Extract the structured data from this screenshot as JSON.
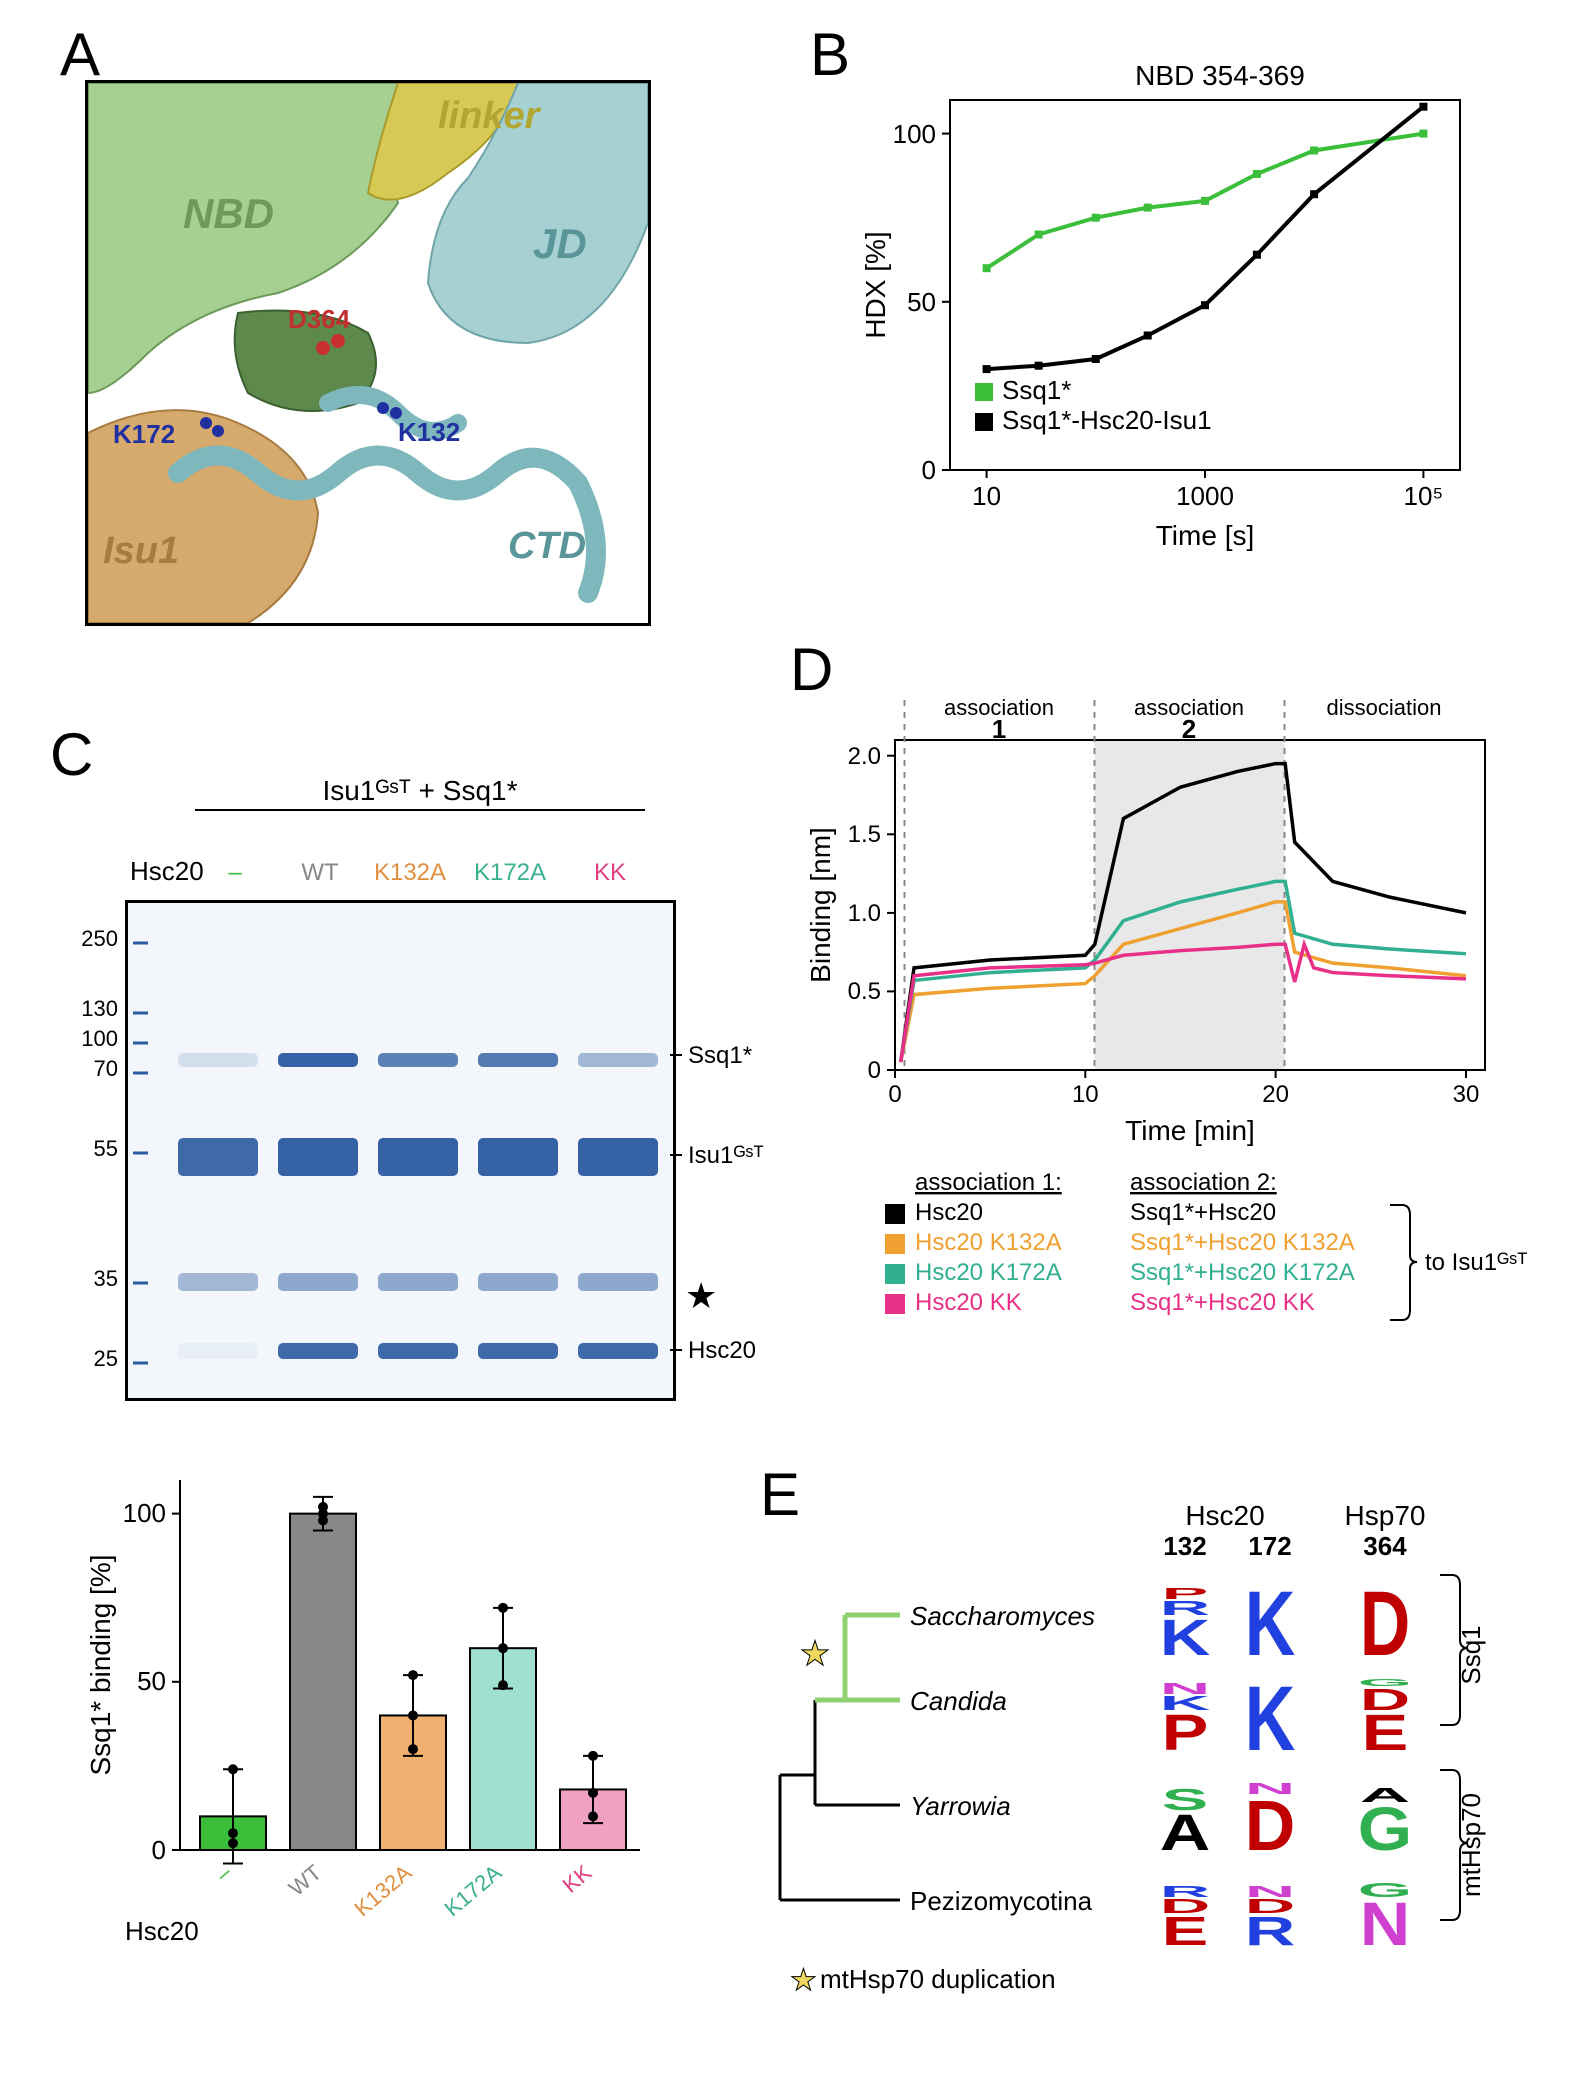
{
  "panelA": {
    "label": "A",
    "domains": {
      "NBD": {
        "text": "NBD",
        "color": "#8db87a"
      },
      "linker": {
        "text": "linker",
        "color": "#c6b83e"
      },
      "JD": {
        "text": "JD",
        "color": "#8fbfc3"
      },
      "CTD": {
        "text": "CTD",
        "color": "#7fb8bc"
      },
      "Isu1": {
        "text": "Isu1",
        "color": "#c89659"
      }
    },
    "residues": {
      "D364": {
        "text": "D364",
        "color": "#c03030"
      },
      "K132": {
        "text": "K132",
        "color": "#2030a0"
      },
      "K172": {
        "text": "K172",
        "color": "#2030a0"
      }
    }
  },
  "panelB": {
    "label": "B",
    "title": "NBD 354-369",
    "xlabel": "Time [s]",
    "ylabel": "HDX [%]",
    "xscale": "log",
    "xlim": [
      5,
      200000
    ],
    "ylim": [
      0,
      110
    ],
    "yticks": [
      0,
      50,
      100
    ],
    "xticks": [
      10,
      1000,
      100000
    ],
    "xtick_labels": [
      "10",
      "1000",
      "10⁵"
    ],
    "legend_pos": "lower-left",
    "series": [
      {
        "name": "Ssq1*",
        "color": "#3bbf3b",
        "marker": "square",
        "points": [
          [
            10,
            60
          ],
          [
            30,
            70
          ],
          [
            100,
            75
          ],
          [
            300,
            78
          ],
          [
            1000,
            80
          ],
          [
            3000,
            88
          ],
          [
            10000,
            95
          ],
          [
            100000,
            100
          ]
        ]
      },
      {
        "name": "Ssq1*-Hsc20-Isu1",
        "color": "#000000",
        "marker": "square",
        "points": [
          [
            10,
            30
          ],
          [
            30,
            31
          ],
          [
            100,
            33
          ],
          [
            300,
            40
          ],
          [
            1000,
            49
          ],
          [
            3000,
            64
          ],
          [
            10000,
            82
          ],
          [
            100000,
            108
          ]
        ]
      }
    ],
    "title_fontsize": 28,
    "axis_fontsize": 28,
    "tick_fontsize": 26,
    "line_width": 4,
    "marker_size": 8
  },
  "panelC": {
    "label": "C",
    "header": "Isu1ᴳˢᵀ + Ssq1*",
    "hsc20_row_label": "Hsc20",
    "mw_markers": [
      "250",
      "130",
      "100",
      "70",
      "55",
      "35",
      "25"
    ],
    "mw_positions": [
      40,
      110,
      140,
      170,
      250,
      380,
      460
    ],
    "lane_labels": [
      {
        "text": "–",
        "color": "#3bbf3b"
      },
      {
        "text": "WT",
        "color": "#888888"
      },
      {
        "text": "K132A",
        "color": "#e09040"
      },
      {
        "text": "K172A",
        "color": "#3bb090"
      },
      {
        "text": "KK",
        "color": "#e04080"
      }
    ],
    "band_labels": {
      "Ssq1*": {
        "text": "Ssq1*",
        "y": 155
      },
      "Isu1GST": {
        "text": "Isu1ᴳˢᵀ",
        "y": 255
      },
      "Hsc20": {
        "text": "Hsc20",
        "y": 450
      }
    },
    "star_y": 395,
    "barChart": {
      "ylabel": "Ssq1* binding [%]",
      "ylim": [
        0,
        110
      ],
      "yticks": [
        0,
        50,
        100
      ],
      "axis_fontsize": 28,
      "tick_fontsize": 26,
      "categories": [
        {
          "label": "–",
          "value": 10,
          "error": 14,
          "color": "#3bbf3b",
          "label_color": "#3bbf3b"
        },
        {
          "label": "WT",
          "value": 100,
          "error": 5,
          "color": "#888888",
          "label_color": "#888888"
        },
        {
          "label": "K132A",
          "value": 40,
          "error": 12,
          "color": "#f0b070",
          "label_color": "#e09040"
        },
        {
          "label": "K172A",
          "value": 60,
          "error": 12,
          "color": "#a0e0d0",
          "label_color": "#3bb090"
        },
        {
          "label": "KK",
          "value": 18,
          "error": 10,
          "color": "#f0a0c0",
          "label_color": "#e04080"
        }
      ],
      "xaxis_label": "Hsc20",
      "scatter_points": [
        [
          0,
          2
        ],
        [
          0,
          5
        ],
        [
          0,
          24
        ],
        [
          1,
          98
        ],
        [
          1,
          100
        ],
        [
          1,
          102
        ],
        [
          2,
          30
        ],
        [
          2,
          40
        ],
        [
          2,
          52
        ],
        [
          3,
          49
        ],
        [
          3,
          60
        ],
        [
          3,
          72
        ],
        [
          4,
          10
        ],
        [
          4,
          17
        ],
        [
          4,
          28
        ]
      ]
    }
  },
  "panelD": {
    "label": "D",
    "ylabel": "Binding [nm]",
    "xlabel": "Time [min]",
    "ylim": [
      -0.1,
      2.0
    ],
    "yticks": [
      0,
      0.5,
      1.0,
      1.5,
      2.0
    ],
    "xlim": [
      0,
      31
    ],
    "xticks": [
      0,
      10,
      20,
      30
    ],
    "axis_fontsize": 28,
    "tick_fontsize": 26,
    "phase_labels": {
      "assoc": "association",
      "dissoc": "dissociation",
      "one": "1",
      "two": "2"
    },
    "shade_x": [
      10.5,
      20.5
    ],
    "shade_color": "#e8e8e8",
    "line_width": 3.5,
    "series": [
      {
        "name": "Hsc20",
        "color": "#000000",
        "poly": "0.3,-0.05 1,0.55 5,0.6 10,0.63 10.5,0.7 12,1.5 15,1.7 18,1.8 20,1.85 20.5,1.85 21,1.35 23,1.1 26,1.0 30,0.9"
      },
      {
        "name": "Hsc20 K132A",
        "color": "#f0a030",
        "poly": "0.3,-0.05 1,0.38 5,0.42 10,0.45 10.5,0.5 12,0.7 15,0.8 18,0.9 20,0.97 20.5,0.97 21,0.65 23,0.58 26,0.55 30,0.5"
      },
      {
        "name": "Hsc20 K172A",
        "color": "#30b090",
        "poly": "0.3,-0.05 1,0.47 5,0.52 10,0.55 10.5,0.6 12,0.85 15,0.97 18,1.05 20,1.1 20.5,1.1 21,0.77 23,0.7 26,0.67 30,0.64"
      },
      {
        "name": "Hsc20 KK",
        "color": "#e83088",
        "poly": "0.3,-0.05 1,0.5 5,0.55 10,0.57 10.5,0.58 12,0.63 15,0.66 18,0.68 20,0.7 20.5,0.7 21,0.46 21.5,0.7 22,0.55 23,0.52 26,0.5 30,0.48"
      }
    ],
    "legend": {
      "col1_header": "association 1:",
      "col2_header": "association 2:",
      "bracket_label": "to Isu1ᴳˢᵀ",
      "rows": [
        {
          "color": "#000000",
          "c1": "Hsc20",
          "c2": "Ssq1*+Hsc20"
        },
        {
          "color": "#f0a030",
          "c1": "Hsc20 K132A",
          "c2": "Ssq1*+Hsc20 K132A"
        },
        {
          "color": "#30b090",
          "c1": "Hsc20 K172A",
          "c2": "Ssq1*+Hsc20 K172A"
        },
        {
          "color": "#e83088",
          "c1": "Hsc20 KK",
          "c2": "Ssq1*+Hsc20 KK"
        }
      ]
    }
  },
  "panelE": {
    "label": "E",
    "col_headers": {
      "hsc20": "Hsc20",
      "hsp70": "Hsp70"
    },
    "positions": [
      "132",
      "172",
      "364"
    ],
    "taxa": [
      "Saccharomyces",
      "Candida",
      "Yarrowia",
      "Pezizomycotina"
    ],
    "duplication_label": "mtHsp70 duplication",
    "right_brackets": {
      "top": "Ssq1",
      "bottom": "mtHsp70"
    },
    "tree_highlight_color": "#8fd070",
    "logos": [
      [
        [
          {
            "l": "K",
            "c": "#2040e0",
            "h": 0.5
          },
          {
            "l": "R",
            "c": "#2040e0",
            "h": 0.2
          },
          {
            "l": "P",
            "c": "#c00000",
            "h": 0.15
          }
        ],
        [
          {
            "l": "P",
            "c": "#c00000",
            "h": 0.5
          },
          {
            "l": "K",
            "c": "#2040e0",
            "h": 0.2
          },
          {
            "l": "N",
            "c": "#d040d0",
            "h": 0.15
          }
        ],
        [
          {
            "l": "A",
            "c": "#000000",
            "h": 0.5
          },
          {
            "l": "S",
            "c": "#30b050",
            "h": 0.3
          }
        ],
        [
          {
            "l": "E",
            "c": "#c00000",
            "h": 0.4
          },
          {
            "l": "D",
            "c": "#c00000",
            "h": 0.2
          },
          {
            "l": "R",
            "c": "#2040e0",
            "h": 0.15
          }
        ]
      ],
      [
        [
          {
            "l": "K",
            "c": "#2040e0",
            "h": 0.9
          }
        ],
        [
          {
            "l": "K",
            "c": "#2040e0",
            "h": 0.9
          }
        ],
        [
          {
            "l": "D",
            "c": "#c00000",
            "h": 0.7
          },
          {
            "l": "N",
            "c": "#d040d0",
            "h": 0.15
          }
        ],
        [
          {
            "l": "R",
            "c": "#2040e0",
            "h": 0.4
          },
          {
            "l": "D",
            "c": "#c00000",
            "h": 0.2
          },
          {
            "l": "N",
            "c": "#d040d0",
            "h": 0.15
          }
        ]
      ],
      [
        [
          {
            "l": "D",
            "c": "#c00000",
            "h": 0.9
          }
        ],
        [
          {
            "l": "E",
            "c": "#c00000",
            "h": 0.5
          },
          {
            "l": "D",
            "c": "#c00000",
            "h": 0.3
          },
          {
            "l": "G",
            "c": "#30b050",
            "h": 0.1
          }
        ],
        [
          {
            "l": "G",
            "c": "#30b050",
            "h": 0.6
          },
          {
            "l": "A",
            "c": "#000000",
            "h": 0.2
          }
        ],
        [
          {
            "l": "N",
            "c": "#d040d0",
            "h": 0.6
          },
          {
            "l": "G",
            "c": "#30b050",
            "h": 0.2
          }
        ]
      ]
    ]
  }
}
